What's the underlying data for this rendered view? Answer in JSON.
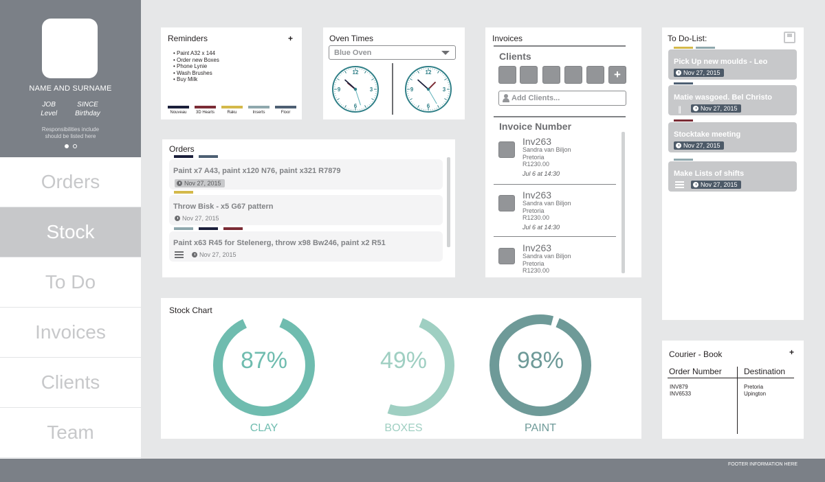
{
  "profile": {
    "name": "NAME AND SURNAME",
    "job_line1": "JOB",
    "job_line2": "Level",
    "since_line1": "SINCE",
    "since_line2": "Birthday",
    "resp_line1": "Responsibilities include",
    "resp_line2": "should be listed here"
  },
  "nav": [
    "Orders",
    "Stock",
    "To Do",
    "Invoices",
    "Clients",
    "Team"
  ],
  "nav_active": 1,
  "reminders": {
    "title": "Reminders",
    "add": "+",
    "items": [
      "Paint A32 x 144",
      "Order new Boxes",
      "Phone Lynie",
      "Wash Brushes",
      "Buy Milk"
    ],
    "legend": [
      {
        "label": "Nouveau",
        "color": "#1b1f3b"
      },
      {
        "label": "3D Hearts",
        "color": "#7b2c35"
      },
      {
        "label": "Raku",
        "color": "#d4b94a"
      },
      {
        "label": "Inserts",
        "color": "#8fa8ad"
      },
      {
        "label": "Floor",
        "color": "#4d5f73"
      }
    ]
  },
  "oven": {
    "title": "Oven Times",
    "selected": "Blue Oven",
    "clock_numbers": [
      "12",
      "3",
      "6",
      "9"
    ],
    "clock1": {
      "hour": 10.3,
      "minute": 52,
      "second": 27
    },
    "clock2": {
      "hour": 1.5,
      "minute": 52,
      "second": 25
    }
  },
  "orders": {
    "title": "Orders",
    "items": [
      {
        "text": "Paint x7 A43, paint x120 N76, paint x321 R7879",
        "date": "Nov 27, 2015",
        "tags": [
          "#1b1f3b",
          "#4d5f73"
        ],
        "date_style": "grey",
        "list": false
      },
      {
        "text": "Throw Bisk - x5 G67 pattern",
        "date": "Nov 27, 2015",
        "tags": [
          "#d4b94a"
        ],
        "date_style": "plain",
        "list": false
      },
      {
        "text": "Paint x63 R45 for Stelenerg, throw x98 Bw246, paint x2 R51",
        "date": "Nov 27, 2015",
        "tags": [
          "#8fa8ad",
          "#1b1f3b",
          "#7b2c35"
        ],
        "date_style": "plain",
        "list": true
      }
    ]
  },
  "invoices": {
    "title": "Invoices",
    "clients_heading": "Clients",
    "add_client_symbol": "+",
    "add_client_placeholder": "Add Clients...",
    "number_heading": "Invoice Number",
    "items": [
      {
        "no": "Inv263",
        "name": "Sandra van Biljon",
        "city": "Pretoria",
        "amount": "R1230.00",
        "time": "Jul 6 at 14:30"
      },
      {
        "no": "Inv263",
        "name": "Sandra van Biljon",
        "city": "Pretoria",
        "amount": "R1230.00",
        "time": "Jul 6 at 14:30"
      },
      {
        "no": "Inv263",
        "name": "Sandra van Biljon",
        "city": "Pretoria",
        "amount": "R1230.00",
        "time": ""
      }
    ]
  },
  "todo": {
    "title": "To Do-List:",
    "items": [
      {
        "text": "Pick Up new moulds - Leo",
        "date": "Nov 27, 2015",
        "tags": [
          "#d4b94a",
          "#8fa8ad"
        ],
        "attach": false,
        "list": false
      },
      {
        "text": "Matie wasgoed. Bel Christo",
        "date": "Nov 27, 2015",
        "tags": [
          "#4d5f73"
        ],
        "attach": true,
        "list": false
      },
      {
        "text": "Stocktake meeting",
        "date": "Nov 27, 2015",
        "tags": [
          "#7b2c35"
        ],
        "attach": false,
        "list": false
      },
      {
        "text": "Make Lists of shifts",
        "date": "Nov 27, 2015",
        "tags": [
          "#8fa8ad"
        ],
        "attach": false,
        "list": true
      }
    ]
  },
  "stock": {
    "title": "Stock Chart"
  },
  "chart_data": {
    "type": "pie",
    "title": "Stock Chart",
    "categories": [
      "CLAY",
      "BOXES",
      "PAINT"
    ],
    "values": [
      87,
      49,
      98
    ],
    "labels": [
      "87%",
      "49%",
      "98%"
    ],
    "colors": [
      "#6fbcaf",
      "#9fcfc2",
      "#6e9a98"
    ]
  },
  "courier": {
    "title": "Courier - Book",
    "add": "+",
    "col1": "Order Number",
    "col2": "Destination",
    "orders": [
      "INV879",
      "INV6533"
    ],
    "destinations": [
      "Pretoria",
      "Upington"
    ]
  },
  "footer": "FOOTER INFORMATION HERE"
}
